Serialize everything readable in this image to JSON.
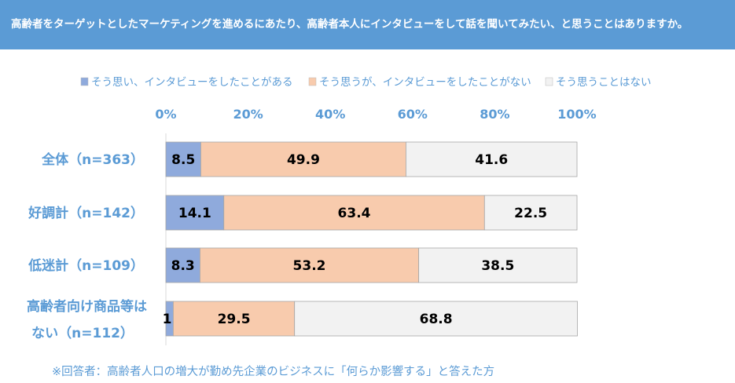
{
  "header": {
    "title": "高齢者をターゲットとしたマーケティングを進めるにあたり、高齢者本人にインタビューをして話を聞いてみたい、と思うことはありますか。"
  },
  "chart_data": {
    "type": "bar",
    "orientation": "horizontal-stacked-100",
    "title": "",
    "xlim": [
      0,
      100
    ],
    "ticks": [
      "0%",
      "20%",
      "40%",
      "60%",
      "80%",
      "100%"
    ],
    "legend_position": "top",
    "categories": [
      [
        "全体（n=363）"
      ],
      [
        "好調計（n=142）"
      ],
      [
        "低迷計（n=109）"
      ],
      [
        "高齢者向け商品等は",
        "ない（n=112）"
      ]
    ],
    "series": [
      {
        "name": "そう思い、インタビューをしたことがある",
        "color": "#8FAADC",
        "values": [
          8.5,
          14.1,
          8.3,
          1.8
        ]
      },
      {
        "name": "そう思うが、インタビューをしたことがない",
        "color": "#F8CBAD",
        "values": [
          49.9,
          63.4,
          53.2,
          29.5
        ]
      },
      {
        "name": "そう思うことはない",
        "color": "#F2F2F2",
        "values": [
          41.6,
          22.5,
          38.5,
          68.8
        ]
      }
    ]
  },
  "footnote": "※回答者：高齢者人口の増大が勤め先企業のビジネスに「何らか影響する」と答えた方"
}
